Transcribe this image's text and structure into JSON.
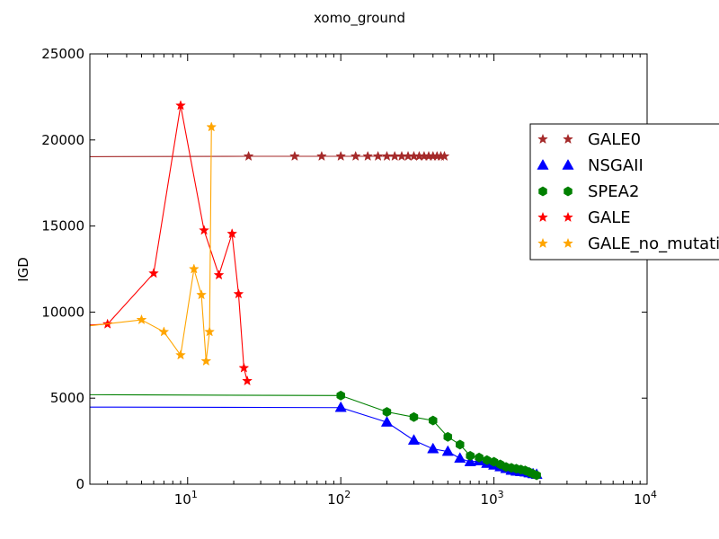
{
  "chart_data": {
    "type": "line",
    "title": "xomo_ground",
    "xlabel": "",
    "ylabel": "IGD",
    "x_scale": "log",
    "xlim": [
      2.3,
      10000
    ],
    "ylim": [
      0,
      25000
    ],
    "x_tick_labels": [
      {
        "value": 10,
        "base": "10",
        "exp": "1"
      },
      {
        "value": 100,
        "base": "10",
        "exp": "2"
      },
      {
        "value": 1000,
        "base": "10",
        "exp": "3"
      },
      {
        "value": 10000,
        "base": "10",
        "exp": "4"
      }
    ],
    "y_ticks": [
      0,
      5000,
      10000,
      15000,
      20000,
      25000
    ],
    "y_tick_labels": [
      "0",
      "5000",
      "10000",
      "15000",
      "20000",
      "25000"
    ],
    "grid": false,
    "legend_position": "right",
    "series": [
      {
        "name": "GALE0",
        "color": "#a52a2a",
        "marker": "star",
        "points": [
          [
            0,
            19030
          ],
          [
            25,
            19050
          ],
          [
            50,
            19050
          ],
          [
            75,
            19050
          ],
          [
            100,
            19050
          ],
          [
            125,
            19050
          ],
          [
            150,
            19050
          ],
          [
            175,
            19050
          ],
          [
            200,
            19050
          ],
          [
            225,
            19050
          ],
          [
            250,
            19050
          ],
          [
            275,
            19050
          ],
          [
            300,
            19050
          ],
          [
            325,
            19050
          ],
          [
            350,
            19050
          ],
          [
            375,
            19050
          ],
          [
            400,
            19050
          ],
          [
            425,
            19050
          ],
          [
            450,
            19050
          ],
          [
            475,
            19050
          ]
        ],
        "start_from_axis": true
      },
      {
        "name": "NSGAII",
        "color": "#0000ff",
        "marker": "triangle",
        "points": [
          [
            0,
            4480
          ],
          [
            100,
            4450
          ],
          [
            200,
            3600
          ],
          [
            300,
            2550
          ],
          [
            400,
            2050
          ],
          [
            500,
            1900
          ],
          [
            600,
            1500
          ],
          [
            700,
            1300
          ],
          [
            800,
            1350
          ],
          [
            900,
            1200
          ],
          [
            1000,
            1100
          ],
          [
            1100,
            1000
          ],
          [
            1200,
            900
          ],
          [
            1300,
            800
          ],
          [
            1400,
            750
          ],
          [
            1500,
            720
          ],
          [
            1600,
            700
          ],
          [
            1700,
            650
          ],
          [
            1800,
            600
          ],
          [
            1900,
            560
          ]
        ],
        "start_from_axis": true
      },
      {
        "name": "SPEA2",
        "color": "#008000",
        "marker": "hexagon",
        "points": [
          [
            0,
            5200
          ],
          [
            100,
            5150
          ],
          [
            200,
            4200
          ],
          [
            300,
            3900
          ],
          [
            400,
            3700
          ],
          [
            500,
            2750
          ],
          [
            600,
            2300
          ],
          [
            700,
            1650
          ],
          [
            800,
            1550
          ],
          [
            900,
            1400
          ],
          [
            1000,
            1300
          ],
          [
            1100,
            1150
          ],
          [
            1200,
            1000
          ],
          [
            1300,
            950
          ],
          [
            1400,
            900
          ],
          [
            1500,
            850
          ],
          [
            1600,
            800
          ],
          [
            1700,
            700
          ],
          [
            1800,
            600
          ],
          [
            1900,
            520
          ]
        ],
        "start_from_axis": true
      },
      {
        "name": "GALE",
        "color": "#ff0000",
        "marker": "star",
        "points": [
          [
            0,
            9250
          ],
          [
            3,
            9300
          ],
          [
            6,
            12250
          ],
          [
            9,
            22000
          ],
          [
            12.8,
            14750
          ],
          [
            16,
            12150
          ],
          [
            19.5,
            14550
          ],
          [
            21.5,
            11050
          ],
          [
            23.3,
            6750
          ],
          [
            24.5,
            6000
          ]
        ],
        "start_from_axis": true
      },
      {
        "name": "GALE_no_mutation",
        "color": "#ffa500",
        "marker": "star",
        "points": [
          [
            0,
            9200
          ],
          [
            5,
            9550
          ],
          [
            7,
            8850
          ],
          [
            9,
            7500
          ],
          [
            11,
            12500
          ],
          [
            12.3,
            11000
          ],
          [
            13.2,
            7150
          ],
          [
            13.9,
            8850
          ],
          [
            14.3,
            20750
          ]
        ],
        "start_from_axis": true
      }
    ]
  }
}
